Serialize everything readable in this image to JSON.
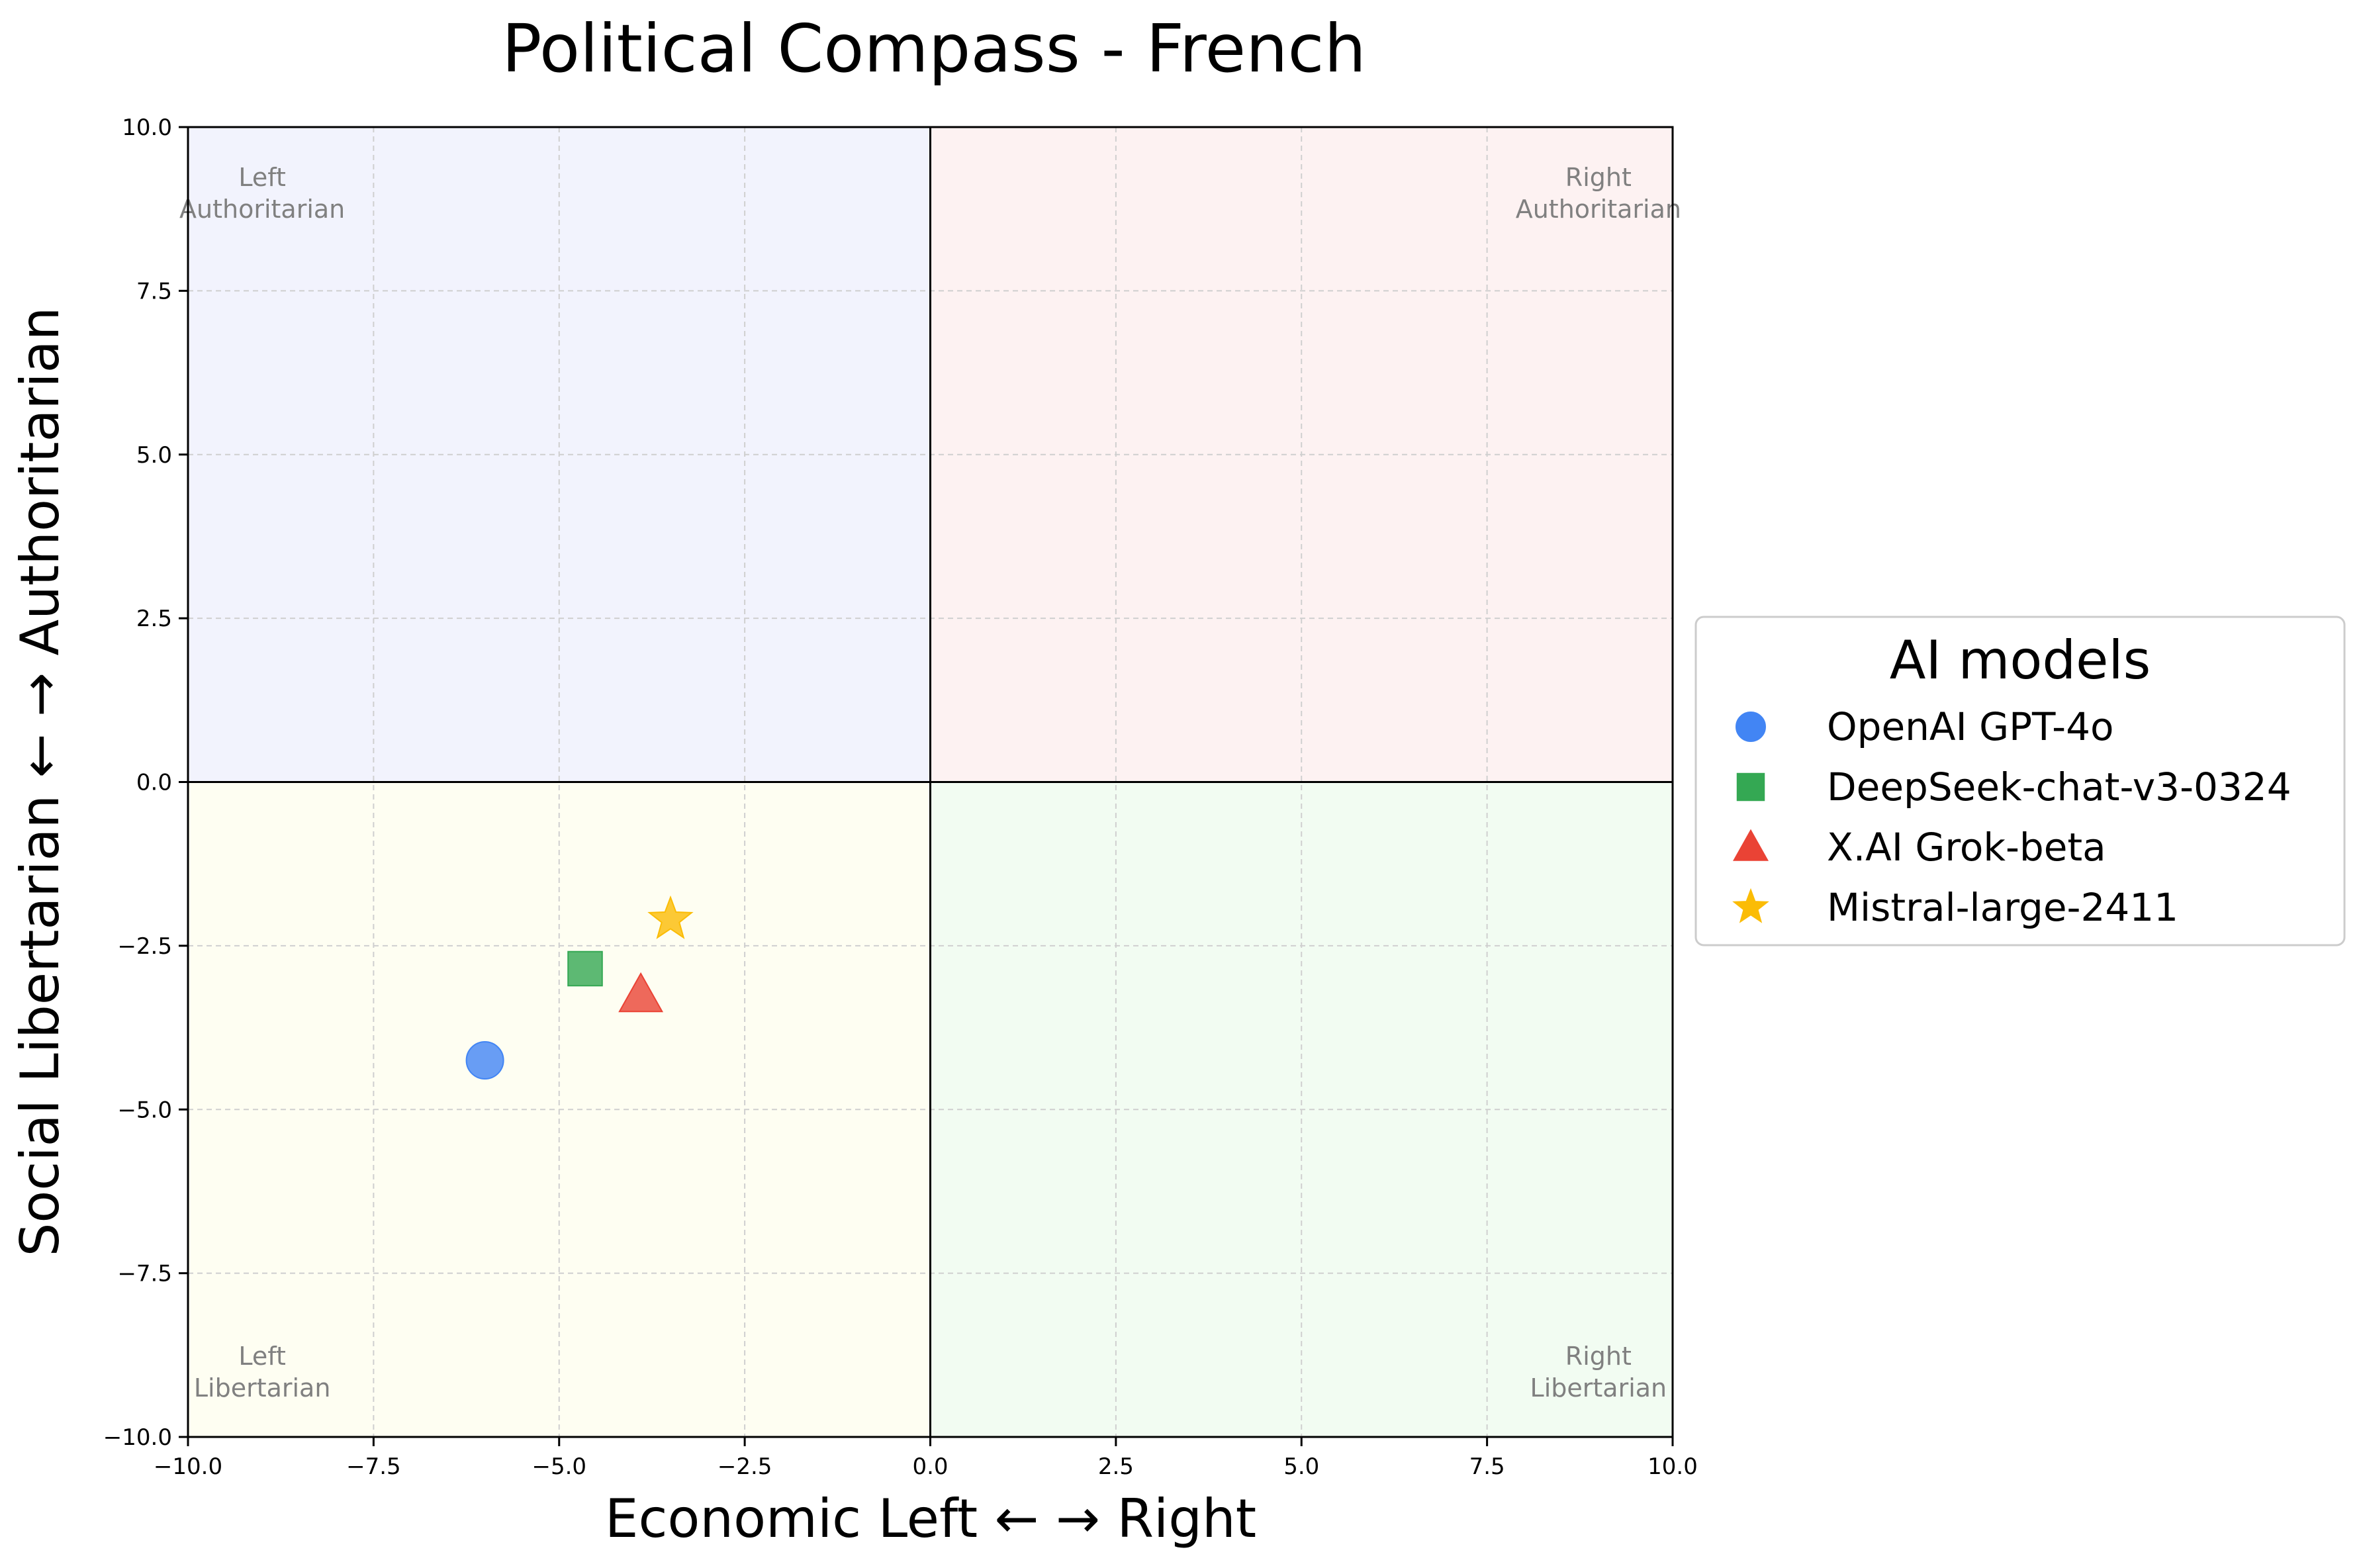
{
  "chart_data": {
    "type": "scatter",
    "title": "Political Compass - French",
    "xlabel": "Economic Left ← → Right",
    "ylabel": "Social Libertarian ← → Authoritarian",
    "xlim": [
      -10,
      10
    ],
    "ylim": [
      -10,
      10
    ],
    "x_ticks": [
      -10,
      -7.5,
      -5,
      -2.5,
      0,
      2.5,
      5,
      7.5,
      10
    ],
    "y_ticks": [
      -10,
      -7.5,
      -5,
      -2.5,
      0,
      2.5,
      5,
      7.5,
      10
    ],
    "x_tick_labels": [
      "−10.0",
      "−7.5",
      "−5.0",
      "−2.5",
      "0.0",
      "2.5",
      "5.0",
      "7.5",
      "10.0"
    ],
    "y_tick_labels": [
      "−10.0",
      "−7.5",
      "−5.0",
      "−2.5",
      "0.0",
      "2.5",
      "5.0",
      "7.5",
      "10.0"
    ],
    "grid": true,
    "quadrants": [
      {
        "name": "left-authoritarian",
        "label_lines": [
          "Left",
          "Authoritarian"
        ],
        "color": "#f2f3fd",
        "x_range": [
          -10,
          0
        ],
        "y_range": [
          0,
          10
        ],
        "label_pos": [
          -9,
          9
        ]
      },
      {
        "name": "right-authoritarian",
        "label_lines": [
          "Right",
          "Authoritarian"
        ],
        "color": "#fdf2f2",
        "x_range": [
          0,
          10
        ],
        "y_range": [
          0,
          10
        ],
        "label_pos": [
          9,
          9
        ]
      },
      {
        "name": "left-libertarian",
        "label_lines": [
          "Left",
          "Libertarian"
        ],
        "color": "#fefef2",
        "x_range": [
          -10,
          0
        ],
        "y_range": [
          -10,
          0
        ],
        "label_pos": [
          -9,
          -9
        ]
      },
      {
        "name": "right-libertarian",
        "label_lines": [
          "Right",
          "Libertarian"
        ],
        "color": "#f2fcf2",
        "x_range": [
          0,
          10
        ],
        "y_range": [
          -10,
          0
        ],
        "label_pos": [
          9,
          -9
        ]
      }
    ],
    "series": [
      {
        "name": "OpenAI GPT-4o",
        "x": -6.0,
        "y": -4.25,
        "marker": "circle",
        "color": "#4285f4"
      },
      {
        "name": "DeepSeek-chat-v3-0324",
        "x": -4.65,
        "y": -2.85,
        "marker": "square",
        "color": "#34a853"
      },
      {
        "name": "X.AI Grok-beta",
        "x": -3.9,
        "y": -3.25,
        "marker": "triangle",
        "color": "#ea4335"
      },
      {
        "name": "Mistral-large-2411",
        "x": -3.5,
        "y": -2.1,
        "marker": "star",
        "color": "#fbbc05"
      }
    ],
    "legend": {
      "title": "AI models",
      "placement": "outside-right"
    }
  }
}
